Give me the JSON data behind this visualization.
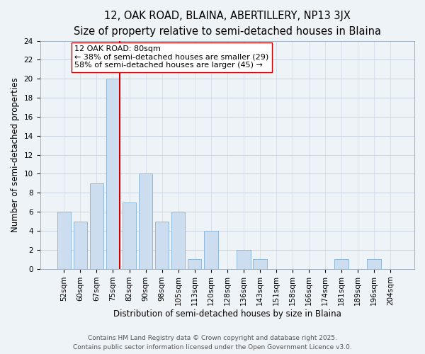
{
  "title": "12, OAK ROAD, BLAINA, ABERTILLERY, NP13 3JX",
  "subtitle": "Size of property relative to semi-detached houses in Blaina",
  "xlabel": "Distribution of semi-detached houses by size in Blaina",
  "ylabel": "Number of semi-detached properties",
  "bins": [
    "52sqm",
    "60sqm",
    "67sqm",
    "75sqm",
    "82sqm",
    "90sqm",
    "98sqm",
    "105sqm",
    "113sqm",
    "120sqm",
    "128sqm",
    "136sqm",
    "143sqm",
    "151sqm",
    "158sqm",
    "166sqm",
    "174sqm",
    "181sqm",
    "189sqm",
    "196sqm",
    "204sqm"
  ],
  "counts": [
    6,
    5,
    9,
    20,
    7,
    10,
    5,
    6,
    1,
    4,
    0,
    2,
    1,
    0,
    0,
    0,
    0,
    1,
    0,
    1,
    0
  ],
  "bar_color": "#ccddf0",
  "bar_edge_color": "#90b8d8",
  "grid_color": "#c8d4e0",
  "background_color": "#eef3f8",
  "vline_color": "#cc0000",
  "annotation_text": "12 OAK ROAD: 80sqm\n← 38% of semi-detached houses are smaller (29)\n58% of semi-detached houses are larger (45) →",
  "annotation_box_color": "white",
  "annotation_box_edge_color": "#cc0000",
  "ylim": [
    0,
    24
  ],
  "yticks": [
    0,
    2,
    4,
    6,
    8,
    10,
    12,
    14,
    16,
    18,
    20,
    22,
    24
  ],
  "footer_text": "Contains HM Land Registry data © Crown copyright and database right 2025.\nContains public sector information licensed under the Open Government Licence v3.0.",
  "title_fontsize": 10.5,
  "xlabel_fontsize": 8.5,
  "ylabel_fontsize": 8.5,
  "tick_fontsize": 7.5,
  "annotation_fontsize": 8,
  "footer_fontsize": 6.5
}
